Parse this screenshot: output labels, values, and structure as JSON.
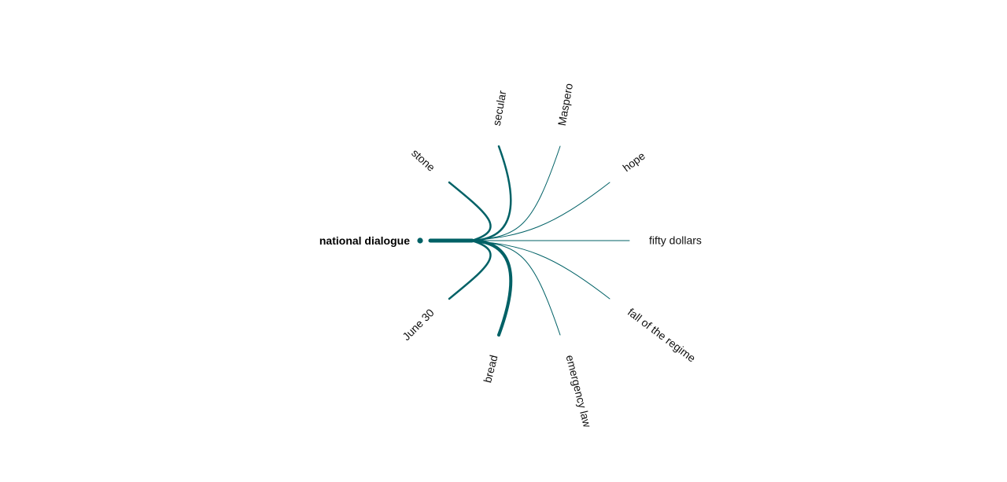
{
  "diagram": {
    "type": "radial-word-association",
    "center": {
      "label": "national dialogue"
    },
    "color": "#006166",
    "nodes": [
      {
        "id": "secular",
        "label": "secular",
        "weight": 2.5
      },
      {
        "id": "maspero",
        "label": "Maspero",
        "weight": 1
      },
      {
        "id": "hope",
        "label": "hope",
        "weight": 1
      },
      {
        "id": "fifty-dollars",
        "label": "fifty dollars",
        "weight": 1
      },
      {
        "id": "fall-of-the-regime",
        "label": "fall of the regime",
        "weight": 1
      },
      {
        "id": "emergency-law",
        "label": "emergency law",
        "weight": 1
      },
      {
        "id": "bread",
        "label": "bread",
        "weight": 4
      },
      {
        "id": "june-30",
        "label": "June 30",
        "weight": 2.5
      },
      {
        "id": "stone",
        "label": "stone",
        "weight": 2.5
      }
    ]
  }
}
